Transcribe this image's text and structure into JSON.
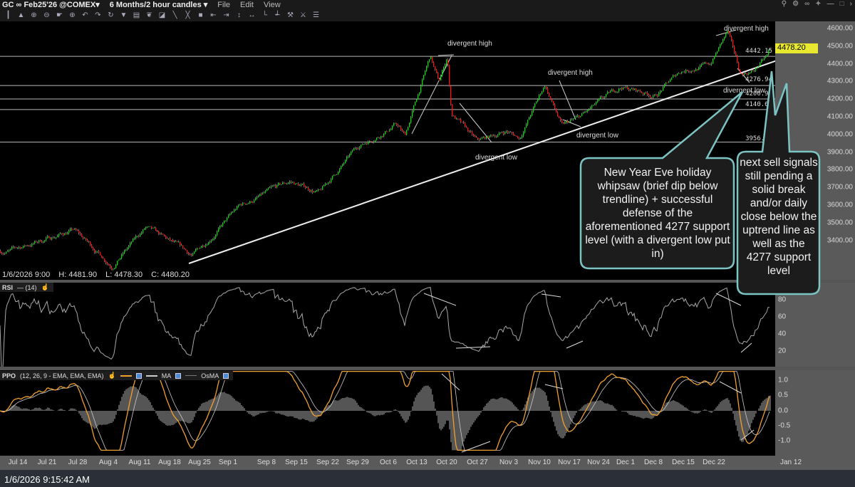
{
  "titlebar": {
    "symbol": "GC ∞ Feb25'26 @COMEX▾",
    "period": "6 Months/2 hour candles ▾",
    "menu": [
      "File",
      "Edit",
      "View"
    ],
    "window_controls": [
      "search-icon",
      "settings-icon",
      "link-icon",
      "pin-icon",
      "minimize-icon",
      "maximize-icon",
      "close-icon"
    ]
  },
  "toolbar": {
    "icons": [
      {
        "name": "bar-style-icon",
        "glyph": "┃"
      },
      {
        "name": "mountain-icon",
        "glyph": "▲"
      },
      {
        "name": "zoom-in-icon",
        "glyph": "⊕"
      },
      {
        "name": "zoom-out-icon",
        "glyph": "⊖"
      },
      {
        "name": "pointer-icon",
        "glyph": "☛"
      },
      {
        "name": "crosshair-icon",
        "glyph": "⊕"
      },
      {
        "name": "undo-icon",
        "glyph": "↶"
      },
      {
        "name": "redo-icon",
        "glyph": "↷"
      },
      {
        "name": "refresh-icon",
        "glyph": "↻"
      },
      {
        "name": "dropdown-icon",
        "glyph": "▼"
      },
      {
        "name": "text-icon",
        "glyph": "▤"
      },
      {
        "name": "fibonacci-icon",
        "glyph": "❦"
      },
      {
        "name": "channel-icon",
        "glyph": "◪"
      },
      {
        "name": "line-icon",
        "glyph": "╲"
      },
      {
        "name": "parallel-lines-icon",
        "glyph": "╳"
      },
      {
        "name": "rectangle-icon",
        "glyph": "■"
      },
      {
        "name": "move-left-icon",
        "glyph": "⇤"
      },
      {
        "name": "move-right-icon",
        "glyph": "⇥"
      },
      {
        "name": "compress-icon",
        "glyph": "↕"
      },
      {
        "name": "expand-icon",
        "glyph": "↔"
      },
      {
        "name": "axis-icon",
        "glyph": "└"
      },
      {
        "name": "axis-scale-icon",
        "glyph": "┵"
      },
      {
        "name": "wrench-icon",
        "glyph": "⚒"
      },
      {
        "name": "tools-icon",
        "glyph": "⚔"
      },
      {
        "name": "list-icon",
        "glyph": "☰"
      }
    ]
  },
  "ohlc": {
    "date": "1/6/2026 9:00",
    "high": "H: 4481.90",
    "low": "L: 4478.30",
    "close": "C: 4480.20"
  },
  "last_price": "4478.20",
  "levels": [
    "4442.15",
    "4276.94",
    "4200.99",
    "4140.63",
    "3956.52"
  ],
  "annotations": {
    "divergent_high": "divergent high",
    "divergent_low": "divergent low"
  },
  "callouts": {
    "left": "New Year Eve holiday whipsaw (brief dip below trendline) + successful defense of the aforementioned 4277 support level (with a divergent low put in)",
    "right": "next sell signals still pending a solid break and/or daily close below the uptrend line as well as the 4277 support level",
    "border_color": "#7cc3c4"
  },
  "rsi": {
    "label": "RSI",
    "params": "— (14)",
    "ticks": [
      "80",
      "60",
      "40",
      "20"
    ]
  },
  "ppo": {
    "label": "PPO",
    "params": "(12, 26, 9 - EMA, EMA, EMA)",
    "ma": "MA",
    "osma": "OsMA",
    "ticks": [
      "1.0",
      "0.5",
      "0.0",
      "-0.5",
      "-1.0"
    ]
  },
  "price_axis": [
    "4600.00",
    "4500.00",
    "4400.00",
    "4300.00",
    "4200.00",
    "4100.00",
    "4000.00",
    "3900.00",
    "3800.00",
    "3700.00",
    "3600.00",
    "3500.00",
    "3400.00"
  ],
  "date_axis": [
    "Jul 14",
    "Jul 21",
    "Jul 28",
    "Aug 4",
    "Aug 11",
    "Aug 18",
    "Aug 25",
    "Sep 1",
    "Sep 8",
    "Sep 15",
    "Sep 22",
    "Sep 29",
    "Oct 6",
    "Oct 13",
    "Oct 20",
    "Oct 27",
    "Nov 3",
    "Nov 10",
    "Nov 17",
    "Nov 24",
    "Dec 1",
    "Dec 8",
    "Dec 15",
    "Dec 22",
    "Jan 12"
  ],
  "status_time": "1/6/2026 9:15:42 AM",
  "chart_data": {
    "type": "candlestick",
    "title": "GC ∞ Feb25'26 @COMEX",
    "ylim": [
      3300,
      4650
    ],
    "colors": {
      "up": "#00e000",
      "down": "#ff1010",
      "rsi": "#a8a8a8",
      "ppo": "#f0a030",
      "signal": "#cccccc",
      "histogram": "#555555",
      "price_tag": "#e8e830",
      "arrows": "#f0f000"
    },
    "price_path": [
      {
        "date": "2025-07-10",
        "close": 3340
      },
      {
        "date": "2025-07-25",
        "close": 3460
      },
      {
        "date": "2025-08-03",
        "close": 3260
      },
      {
        "date": "2025-08-11",
        "close": 3470
      },
      {
        "date": "2025-08-22",
        "close": 3310
      },
      {
        "date": "2025-09-02",
        "close": 3590
      },
      {
        "date": "2025-09-14",
        "close": 3730
      },
      {
        "date": "2025-09-21",
        "close": 3670
      },
      {
        "date": "2025-09-30",
        "close": 3930
      },
      {
        "date": "2025-10-09",
        "close": 4060
      },
      {
        "date": "2025-10-11",
        "close": 3990
      },
      {
        "date": "2025-10-17",
        "close": 4440
      },
      {
        "date": "2025-10-19",
        "close": 4290
      },
      {
        "date": "2025-10-21",
        "close": 4440
      },
      {
        "date": "2025-10-22",
        "close": 4120
      },
      {
        "date": "2025-10-28",
        "close": 3955
      },
      {
        "date": "2025-11-04",
        "close": 4020
      },
      {
        "date": "2025-11-07",
        "close": 3980
      },
      {
        "date": "2025-11-13",
        "close": 4280
      },
      {
        "date": "2025-11-17",
        "close": 4045
      },
      {
        "date": "2025-11-21",
        "close": 4090
      },
      {
        "date": "2025-12-01",
        "close": 4270
      },
      {
        "date": "2025-12-09",
        "close": 4220
      },
      {
        "date": "2025-12-15",
        "close": 4360
      },
      {
        "date": "2025-12-22",
        "close": 4400
      },
      {
        "date": "2025-12-26",
        "close": 4580
      },
      {
        "date": "2025-12-29",
        "close": 4340
      },
      {
        "date": "2026-01-01",
        "close": 4360
      },
      {
        "date": "2026-01-06",
        "close": 4480.2
      }
    ]
  }
}
